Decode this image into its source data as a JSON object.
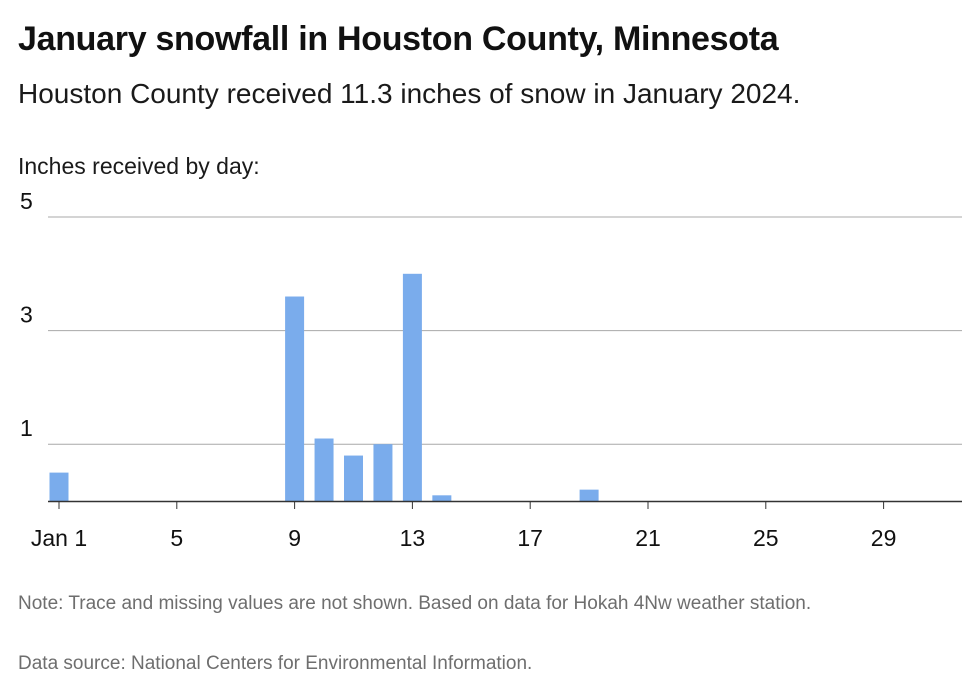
{
  "header": {
    "title": "January snowfall in Houston County, Minnesota",
    "subtitle": "Houston County received 11.3 inches of snow in January 2024.",
    "unit_label": "Inches received by day:"
  },
  "footer": {
    "note": "Note: Trace and missing values are not shown. Based on data for Hokah 4Nw weather station.",
    "source": "Data source: National Centers for Environmental Information."
  },
  "colors": {
    "bar": "#7aacec",
    "grid": "#a8a8a8",
    "axis": "#333333",
    "tick_text": "#111111"
  },
  "chart_data": {
    "type": "bar",
    "x": [
      1,
      9,
      10,
      11,
      12,
      13,
      14,
      19
    ],
    "values": [
      0.5,
      3.6,
      1.1,
      0.8,
      1.0,
      4.0,
      0.1,
      0.2
    ],
    "xlim": [
      1,
      31
    ],
    "ylim": [
      0,
      5
    ],
    "y_ticks": [
      1,
      3,
      5
    ],
    "x_ticks": [
      1,
      5,
      9,
      13,
      17,
      21,
      25,
      29
    ],
    "x_tick_labels": [
      "Jan 1",
      "5",
      "9",
      "13",
      "17",
      "21",
      "25",
      "29"
    ],
    "ylabel": "Inches received by day:",
    "grid": true,
    "legend": "none"
  }
}
